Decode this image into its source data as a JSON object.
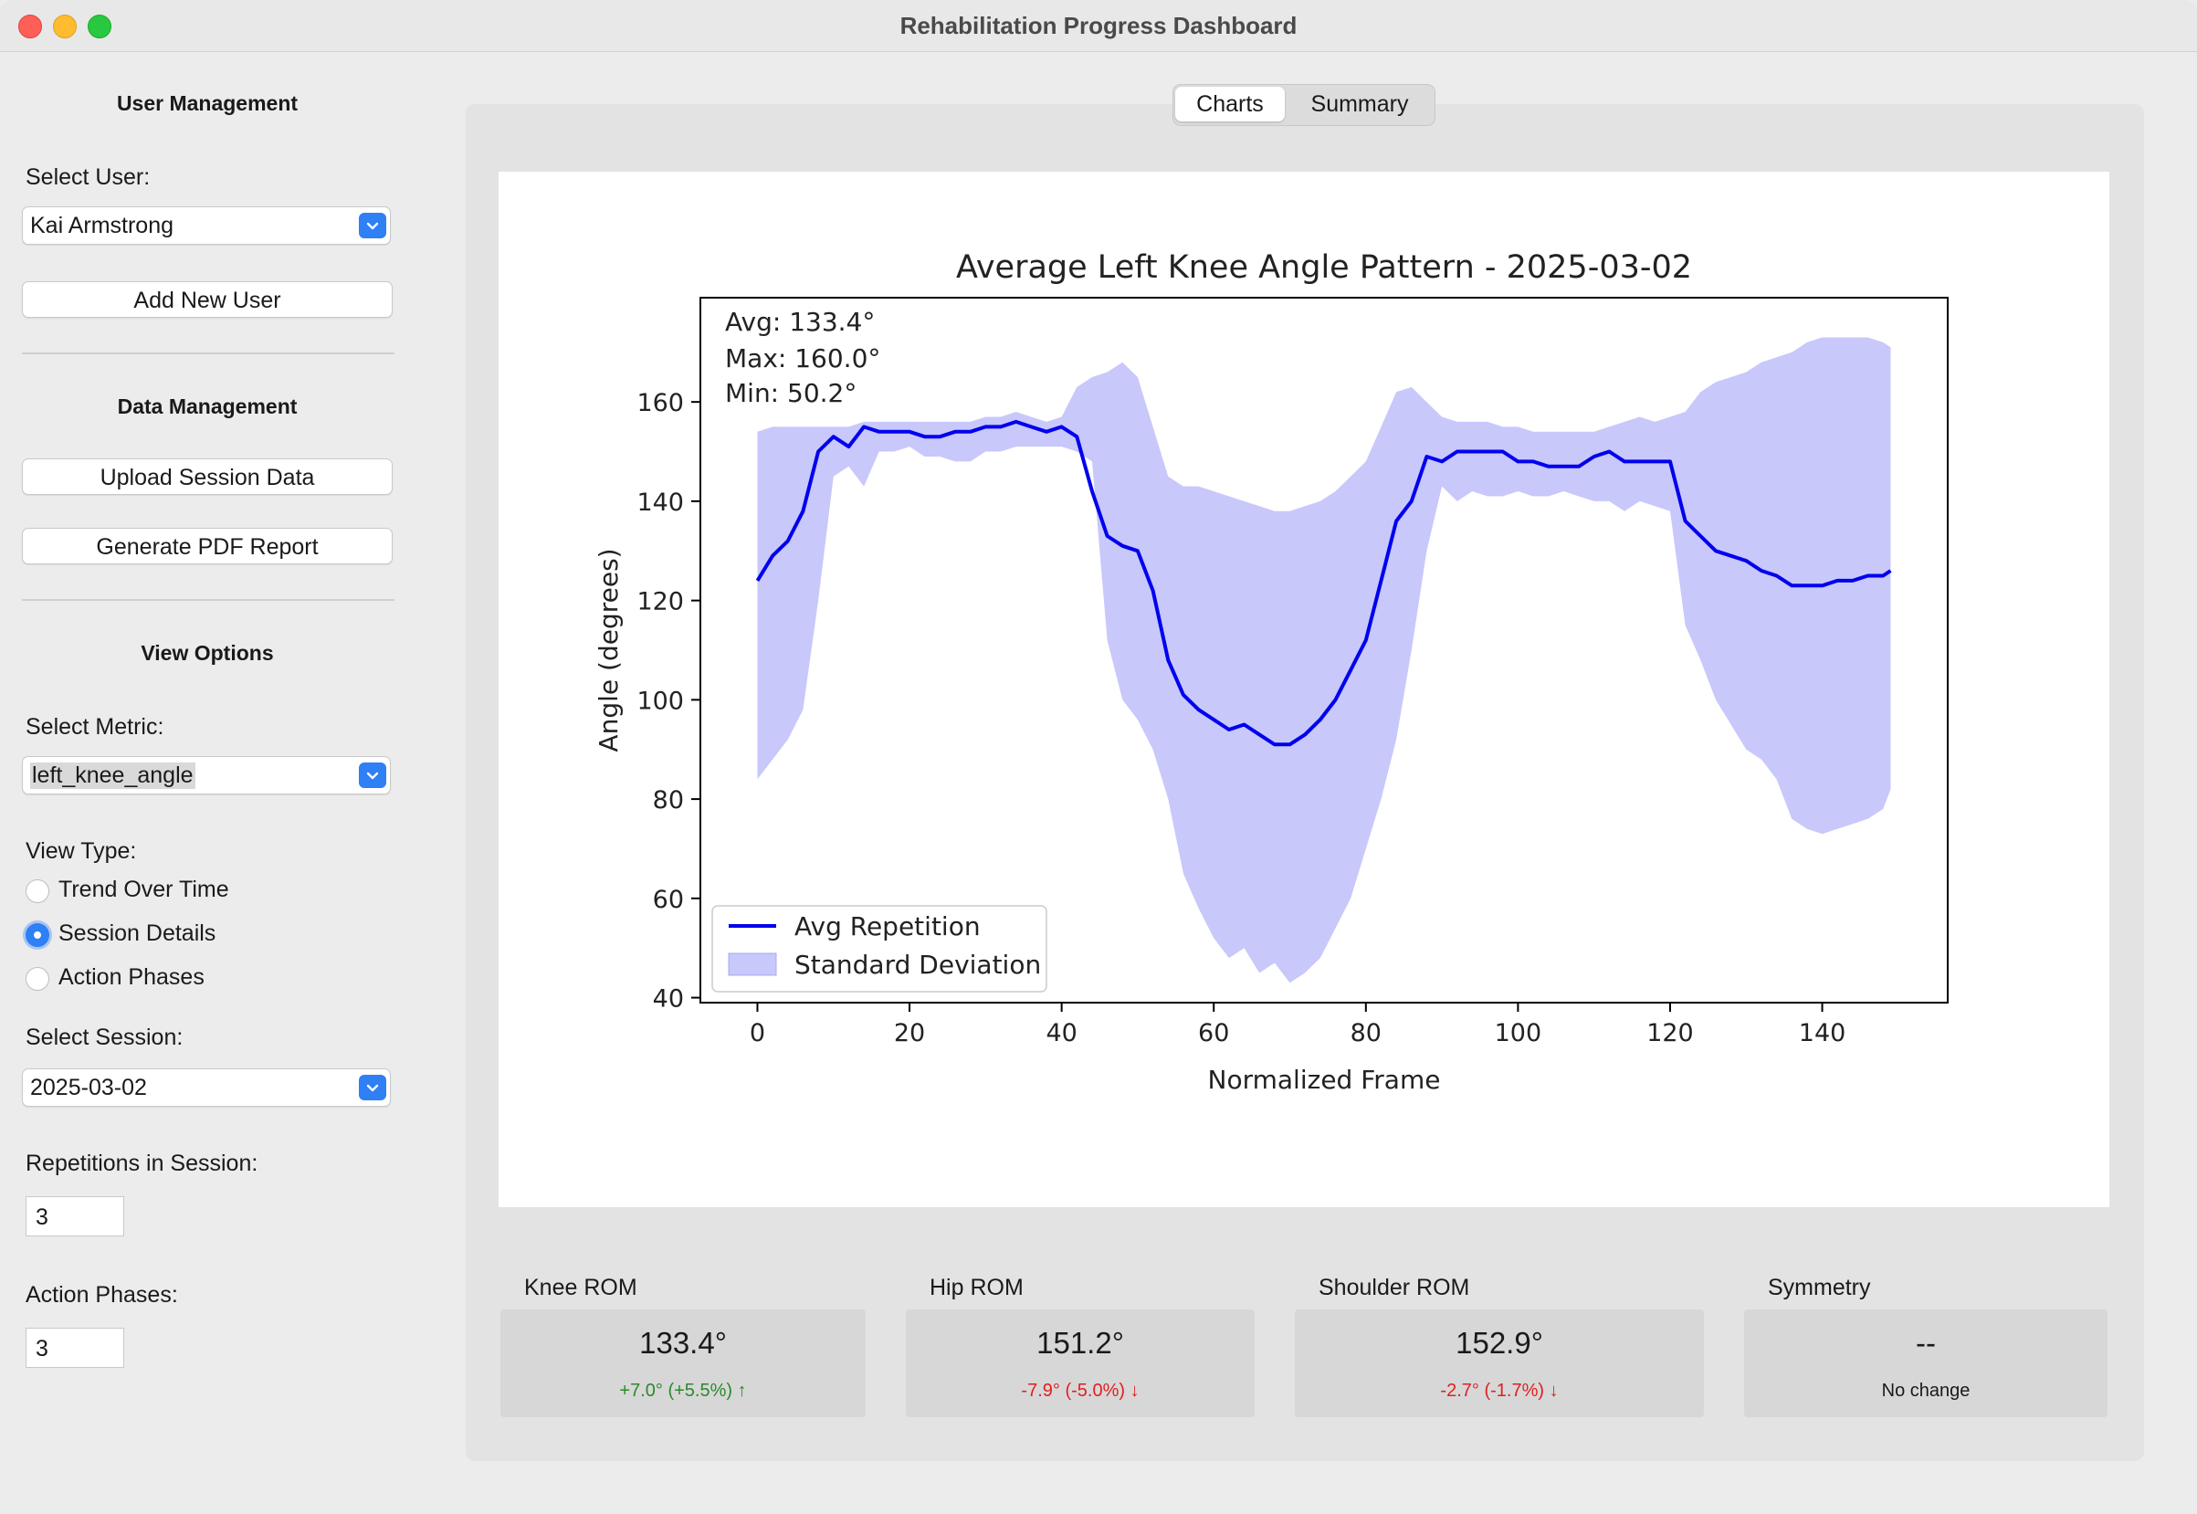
{
  "window": {
    "title": "Rehabilitation Progress Dashboard"
  },
  "sidebar": {
    "user_section_title": "User Management",
    "select_user_label": "Select User:",
    "selected_user": "Kai Armstrong",
    "add_user_label": "Add New User",
    "data_section_title": "Data Management",
    "upload_label": "Upload Session Data",
    "pdf_label": "Generate PDF Report",
    "view_section_title": "View Options",
    "select_metric_label": "Select Metric:",
    "selected_metric": "left_knee_angle",
    "view_type_label": "View Type:",
    "view_types": [
      {
        "label": "Trend Over Time",
        "selected": false
      },
      {
        "label": "Session Details",
        "selected": true
      },
      {
        "label": "Action Phases",
        "selected": false
      }
    ],
    "select_session_label": "Select Session:",
    "selected_session": "2025-03-02",
    "reps_label": "Repetitions in Session:",
    "reps_value": "3",
    "phases_label": "Action Phases:",
    "phases_value": "3"
  },
  "tabs": [
    {
      "label": "Charts",
      "active": true
    },
    {
      "label": "Summary",
      "active": false
    }
  ],
  "chart_data": {
    "type": "line",
    "title": "Average Left Knee Angle Pattern - 2025-03-02",
    "xlabel": "Normalized Frame",
    "ylabel": "Angle (degrees)",
    "xlim": [
      -7.5,
      156.5
    ],
    "ylim": [
      39,
      181
    ],
    "xticks": [
      0,
      20,
      40,
      60,
      80,
      100,
      120,
      140
    ],
    "yticks": [
      40,
      60,
      80,
      100,
      120,
      140,
      160
    ],
    "annotations": [
      "Avg: 133.4°",
      "Max: 160.0°",
      "Min: 50.2°"
    ],
    "legend": {
      "position": "lower-left",
      "entries": [
        "Avg Repetition",
        "Standard Deviation"
      ]
    },
    "series": [
      {
        "name": "Avg Repetition",
        "color": "#0000ee",
        "x": [
          0,
          2,
          4,
          6,
          8,
          10,
          12,
          14,
          16,
          18,
          20,
          22,
          24,
          26,
          28,
          30,
          32,
          34,
          36,
          38,
          40,
          42,
          44,
          46,
          48,
          50,
          52,
          54,
          56,
          58,
          60,
          62,
          64,
          66,
          68,
          70,
          72,
          74,
          76,
          78,
          80,
          82,
          84,
          86,
          88,
          90,
          92,
          94,
          96,
          98,
          100,
          102,
          104,
          106,
          108,
          110,
          112,
          114,
          116,
          118,
          120,
          122,
          124,
          126,
          128,
          130,
          132,
          134,
          136,
          138,
          140,
          142,
          144,
          146,
          148,
          149
        ],
        "y": [
          124,
          129,
          132,
          138,
          150,
          153,
          151,
          155,
          154,
          154,
          154,
          153,
          153,
          154,
          154,
          155,
          155,
          156,
          155,
          154,
          155,
          153,
          142,
          133,
          131,
          130,
          122,
          108,
          101,
          98,
          96,
          94,
          95,
          93,
          91,
          91,
          93,
          96,
          100,
          106,
          112,
          124,
          136,
          140,
          149,
          148,
          150,
          150,
          150,
          150,
          148,
          148,
          147,
          147,
          147,
          149,
          150,
          148,
          148,
          148,
          148,
          136,
          133,
          130,
          129,
          128,
          126,
          125,
          123,
          123,
          123,
          124,
          124,
          125,
          125,
          126
        ]
      },
      {
        "name": "Standard Deviation",
        "color": "#c8c8fb",
        "type": "band",
        "x": [
          0,
          2,
          4,
          6,
          8,
          10,
          12,
          14,
          16,
          18,
          20,
          22,
          24,
          26,
          28,
          30,
          32,
          34,
          36,
          38,
          40,
          42,
          44,
          46,
          48,
          50,
          52,
          54,
          56,
          58,
          60,
          62,
          64,
          66,
          68,
          70,
          72,
          74,
          76,
          78,
          80,
          82,
          84,
          86,
          88,
          90,
          92,
          94,
          96,
          98,
          100,
          102,
          104,
          106,
          108,
          110,
          112,
          114,
          116,
          118,
          120,
          122,
          124,
          126,
          128,
          130,
          132,
          134,
          136,
          138,
          140,
          142,
          144,
          146,
          148,
          149
        ],
        "upper": [
          154,
          155,
          155,
          155,
          155,
          155,
          155,
          156,
          156,
          156,
          156,
          156,
          156,
          156,
          156,
          157,
          157,
          158,
          157,
          156,
          157,
          163,
          165,
          166,
          168,
          165,
          155,
          145,
          143,
          143,
          142,
          141,
          140,
          139,
          138,
          138,
          139,
          140,
          142,
          145,
          148,
          155,
          162,
          163,
          160,
          157,
          156,
          156,
          156,
          155,
          155,
          154,
          154,
          154,
          154,
          154,
          155,
          156,
          157,
          156,
          157,
          158,
          162,
          164,
          165,
          166,
          168,
          169,
          170,
          172,
          173,
          173,
          173,
          173,
          172,
          171
        ],
        "lower": [
          84,
          88,
          92,
          98,
          120,
          145,
          147,
          143,
          150,
          150,
          151,
          149,
          149,
          148,
          148,
          150,
          150,
          151,
          151,
          151,
          151,
          150,
          148,
          112,
          100,
          96,
          90,
          80,
          65,
          58,
          52,
          48,
          50,
          45,
          47,
          43,
          45,
          48,
          54,
          60,
          70,
          80,
          92,
          110,
          130,
          143,
          140,
          142,
          141,
          141,
          142,
          141,
          141,
          142,
          141,
          140,
          140,
          138,
          140,
          139,
          138,
          115,
          108,
          100,
          95,
          90,
          88,
          84,
          76,
          74,
          73,
          74,
          75,
          76,
          78,
          82
        ]
      }
    ]
  },
  "metrics": [
    {
      "label": "Knee ROM",
      "value": "133.4°",
      "change": "+7.0° (+5.5%) ↑",
      "trend": "up"
    },
    {
      "label": "Hip ROM",
      "value": "151.2°",
      "change": "-7.9° (-5.0%) ↓",
      "trend": "down"
    },
    {
      "label": "Shoulder ROM",
      "value": "152.9°",
      "change": "-2.7° (-1.7%) ↓",
      "trend": "down"
    },
    {
      "label": "Symmetry",
      "value": "--",
      "change": "No change",
      "trend": "neutral"
    }
  ]
}
